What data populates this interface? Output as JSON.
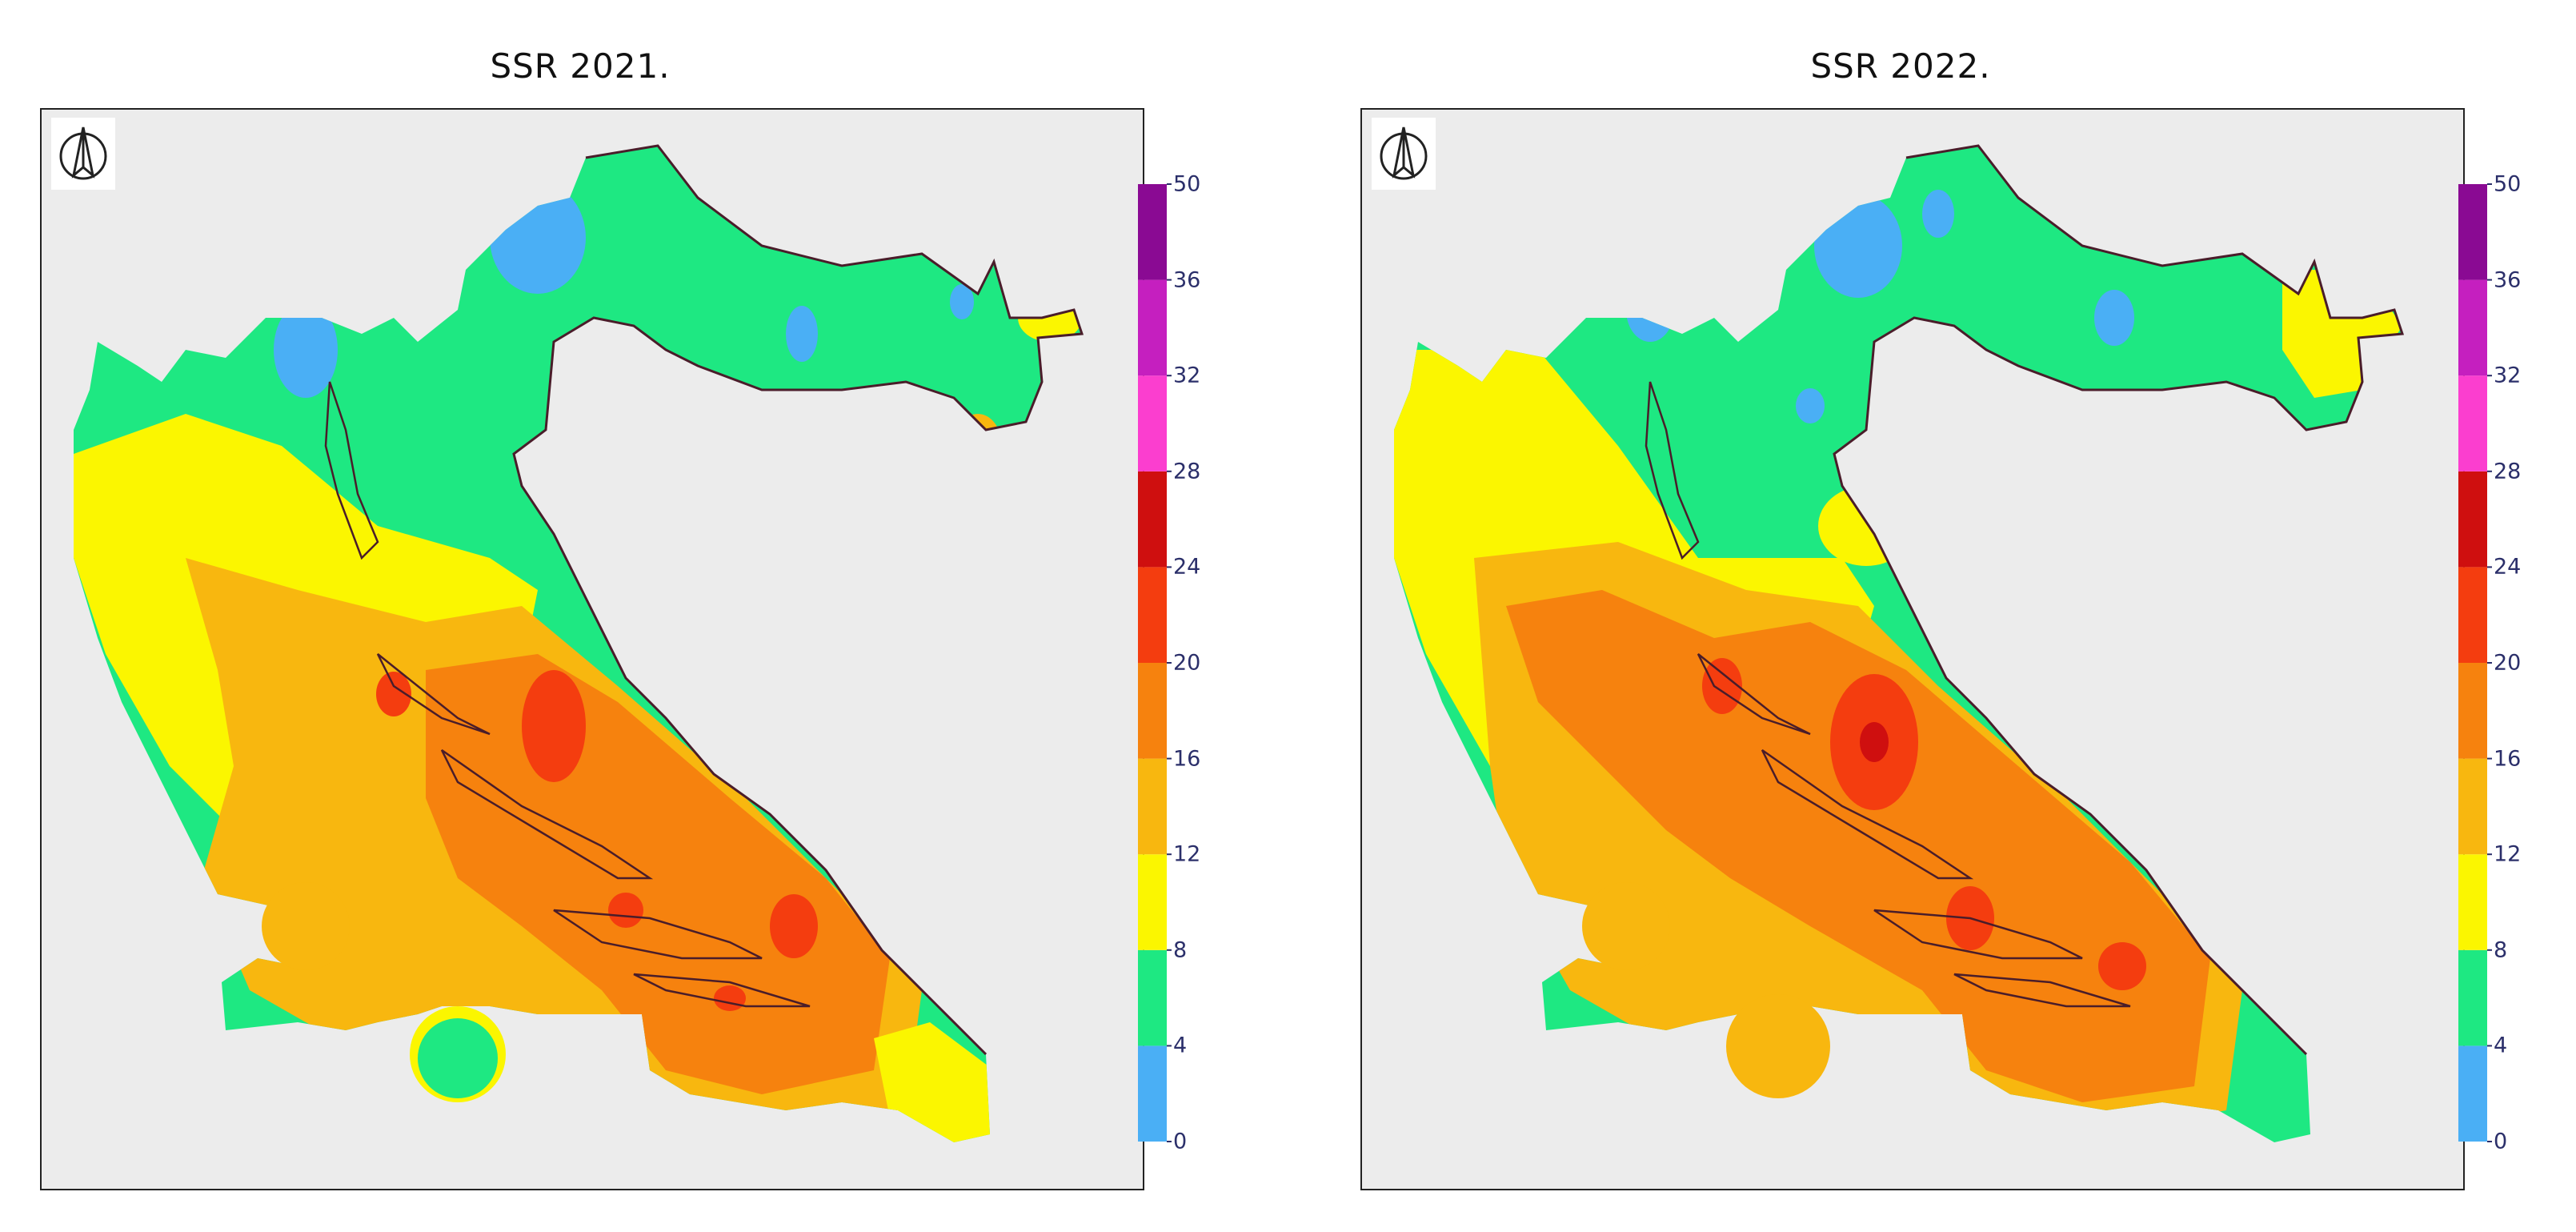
{
  "panels": [
    {
      "title": "SSR 2021."
    },
    {
      "title": "SSR 2022."
    }
  ],
  "north_arrow_icon": "north-arrow-icon",
  "colorbar": {
    "tick_labels": [
      "50",
      "36",
      "32",
      "28",
      "24",
      "20",
      "16",
      "12",
      "8",
      "4",
      "0"
    ],
    "bands": [
      {
        "from": "0",
        "to": "4",
        "color": "#4aaff5"
      },
      {
        "from": "4",
        "to": "8",
        "color": "#1ee882"
      },
      {
        "from": "8",
        "to": "12",
        "color": "#fbf600"
      },
      {
        "from": "12",
        "to": "16",
        "color": "#f8b70f"
      },
      {
        "from": "16",
        "to": "20",
        "color": "#f6820e"
      },
      {
        "from": "20",
        "to": "24",
        "color": "#f43d0f"
      },
      {
        "from": "24",
        "to": "28",
        "color": "#cf0f0f"
      },
      {
        "from": "28",
        "to": "32",
        "color": "#fb3ecf"
      },
      {
        "from": "32",
        "to": "36",
        "color": "#c51fbf"
      },
      {
        "from": "36",
        "to": "50",
        "color": "#8a0a93"
      }
    ]
  },
  "colors": {
    "background": "#ececec",
    "outline": "#4a1d2a"
  }
}
